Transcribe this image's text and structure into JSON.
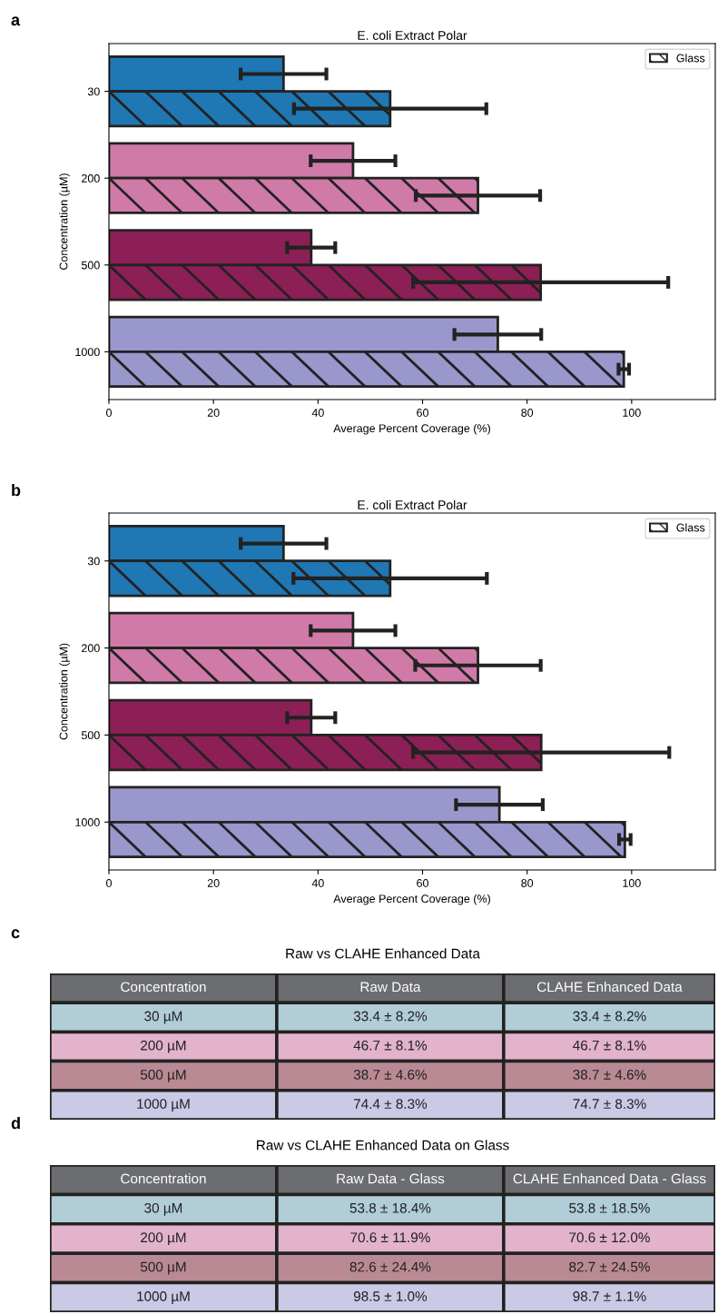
{
  "chart_data": [
    {
      "type": "bar",
      "orientation": "horizontal",
      "title": "E. coli Extract Polar",
      "xlabel": "Average Percent Coverage (%)",
      "ylabel": "Concentration (µM)",
      "annotations": [
        "a"
      ],
      "categories": [
        "30",
        "200",
        "500",
        "1000"
      ],
      "xlim": [
        0,
        116
      ],
      "xticks": [
        0,
        20,
        40,
        60,
        80,
        100
      ],
      "legend": "top right",
      "grid": false,
      "series": [
        {
          "colors": [
            "#1f77b4",
            "#d07aa8",
            "#8c1f55",
            "#9a97cc"
          ],
          "values": [
            33.4,
            46.7,
            38.7,
            74.4
          ],
          "errors": [
            8.2,
            8.1,
            4.6,
            8.3
          ]
        },
        {
          "name": "Glass",
          "colors": [
            "#1f77b4",
            "#d07aa8",
            "#8c1f55",
            "#9a97cc"
          ],
          "values": [
            53.8,
            70.6,
            82.6,
            98.5
          ],
          "errors": [
            18.4,
            11.9,
            24.4,
            1.0
          ]
        }
      ]
    },
    {
      "type": "bar",
      "orientation": "horizontal",
      "title": "E. coli Extract Polar",
      "xlabel": "Average Percent Coverage (%)",
      "ylabel": "Concentration (µM)",
      "annotations": [
        "b"
      ],
      "categories": [
        "30",
        "200",
        "500",
        "1000"
      ],
      "xlim": [
        0,
        116
      ],
      "xticks": [
        0,
        20,
        40,
        60,
        80,
        100
      ],
      "legend": "top right",
      "grid": false,
      "series": [
        {
          "colors": [
            "#1f77b4",
            "#d07aa8",
            "#8c1f55",
            "#9a97cc"
          ],
          "values": [
            33.4,
            46.7,
            38.7,
            74.7
          ],
          "errors": [
            8.2,
            8.1,
            4.6,
            8.3
          ]
        },
        {
          "name": "Glass",
          "colors": [
            "#1f77b4",
            "#d07aa8",
            "#8c1f55",
            "#9a97cc"
          ],
          "values": [
            53.8,
            70.6,
            82.7,
            98.7
          ],
          "errors": [
            18.5,
            12.0,
            24.5,
            1.1
          ]
        }
      ]
    },
    {
      "type": "other",
      "title": "Raw vs CLAHE Enhanced Data",
      "annotations": [
        "c"
      ],
      "y_categories": [
        "Concentration",
        "Raw Data",
        "CLAHE Enhanced Data"
      ],
      "categories": [
        "30 µM",
        "200 µM",
        "500 µM",
        "1000 µM"
      ],
      "color": "#6b6d70",
      "colors": [
        "#b0cdd8",
        "#e3b3cb",
        "#b98a93",
        "#cac9e6"
      ],
      "cell_labels": [
        [
          "33.4 ± 8.2%",
          "46.7 ± 8.1%",
          "38.7 ± 4.6%",
          "74.4 ± 8.3%"
        ],
        [
          "33.4 ± 8.2%",
          "46.7 ± 8.1%",
          "38.7 ± 4.6%",
          "74.7 ± 8.3%"
        ]
      ]
    },
    {
      "type": "other",
      "title": "Raw vs CLAHE Enhanced Data on Glass",
      "annotations": [
        "d"
      ],
      "y_categories": [
        "Concentration",
        "Raw Data - Glass",
        "CLAHE Enhanced Data - Glass"
      ],
      "categories": [
        "30 µM",
        "200 µM",
        "500 µM",
        "1000 µM"
      ],
      "color": "#6b6d70",
      "colors": [
        "#b0cdd8",
        "#e3b3cb",
        "#b98a93",
        "#cac9e6"
      ],
      "cell_labels": [
        [
          "53.8 ± 18.4%",
          "70.6 ± 11.9%",
          "82.6 ± 24.4%",
          "98.5 ± 1.0%"
        ],
        [
          "53.8 ± 18.5%",
          "70.6 ± 12.0%",
          "82.7 ± 24.5%",
          "98.7 ± 1.1%"
        ]
      ]
    }
  ]
}
